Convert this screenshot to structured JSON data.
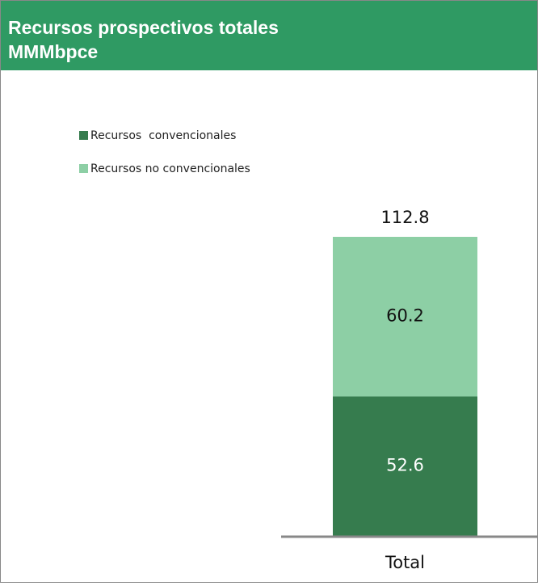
{
  "chart_data": {
    "type": "stacked_bar",
    "title": "Recursos prospectivos totales",
    "subtitle": "MMMbpce",
    "categories": [
      "Total"
    ],
    "series": [
      {
        "name": "Recursos  convencionales",
        "color": "#367c4e",
        "values": [
          52.6
        ]
      },
      {
        "name": "Recursos no convencionales",
        "color": "#8dcfa5",
        "values": [
          60.2
        ]
      }
    ],
    "totals": [
      112.8
    ]
  }
}
